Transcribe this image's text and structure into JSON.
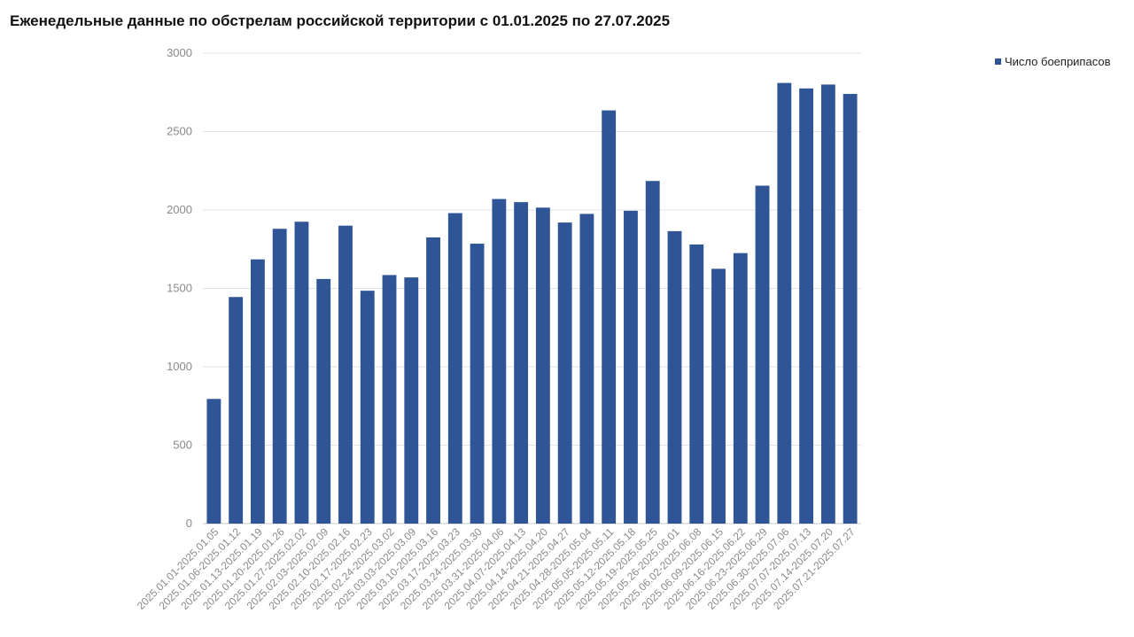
{
  "chart_data": {
    "type": "bar",
    "title": "Еженедельные данные по обстрелам российской территории с 01.01.2025 по 27.07.2025",
    "xlabel": "",
    "ylabel": "",
    "ylim": [
      0,
      3000
    ],
    "yticks": [
      "0",
      "500",
      "1000",
      "1500",
      "2000",
      "2500",
      "3000"
    ],
    "grid": true,
    "legend_position": "top-right",
    "bar_color": "#2F5597",
    "categories": [
      "2025.01.01-2025.01.05",
      "2025.01.06-2025.01.12",
      "2025.01.13-2025.01.19",
      "2025.01.20-2025.01.26",
      "2025.01.27-2025.02.02",
      "2025.02.03-2025.02.09",
      "2025.02.10-2025.02.16",
      "2025.02.17-2025.02.23",
      "2025.02.24-2025.03.02",
      "2025.03.03-2025.03.09",
      "2025.03.10-2025.03.16",
      "2025.03.17-2025.03.23",
      "2025.03.24-2025.03.30",
      "2025.03.31-2025.04.06",
      "2025.04.07-2025.04.13",
      "2025.04.14-2025.04.20",
      "2025.04.21-2025.04.27",
      "2025.04.28-2025.05.04",
      "2025.05.05-2025.05.11",
      "2025.05.12-2025.05.18",
      "2025.05.19-2025.05.25",
      "2025.05.26-2025.06.01",
      "2025.06.02-2025.06.08",
      "2025.06.09-2025.06.15",
      "2025.06.16-2025.06.22",
      "2025.06.23-2025.06.29",
      "2025.06.30-2025.07.06",
      "2025.07.07-2025.07.13",
      "2025.07.14-2025.07.20",
      "2025.07.21-2025.07.27"
    ],
    "series": [
      {
        "name": "Число боеприпасов",
        "values": [
          795,
          1445,
          1685,
          1880,
          1925,
          1560,
          1900,
          1485,
          1585,
          1570,
          1825,
          1980,
          1785,
          2070,
          2050,
          2015,
          1920,
          1975,
          2635,
          1995,
          2185,
          1865,
          1780,
          1625,
          1725,
          2155,
          2810,
          2775,
          2800,
          2740
        ]
      }
    ]
  }
}
